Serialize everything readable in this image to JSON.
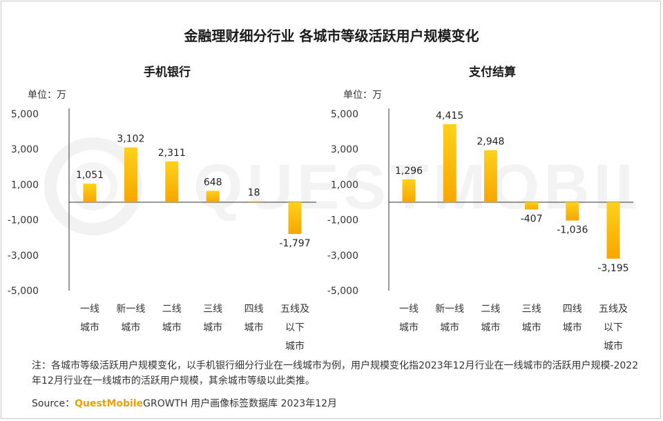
{
  "title": "金融理财细分行业 各城市等级活跃用户规模变化",
  "colors": {
    "bar_top": "#ffd11a",
    "bar_bottom": "#f7a600",
    "axis": "#333333",
    "brand": "#e8a300"
  },
  "watermark": "QUESTMOBILE",
  "footnote": "注：各城市等级活跃用户规模变化，以手机银行细分行业在一线城市为例，用户规模变化指2023年12月行业在一线城市的活跃用户规模-2022年12月行业在一线城市的活跃用户规模，其余城市等级以此类推。",
  "source": {
    "prefix": "Source：",
    "brand": "QuestMobile",
    "rest": "GROWTH 用户画像标签数据库 2023年12月"
  },
  "chart_data": [
    {
      "type": "bar",
      "title": "手机银行",
      "unit_label": "单位：万",
      "categories": [
        "一线城市",
        "新一线城市",
        "二线城市",
        "三线城市",
        "四线城市",
        "五线及以下城市"
      ],
      "category_lines": [
        [
          "一线",
          "城市"
        ],
        [
          "新一线",
          "城市"
        ],
        [
          "二线",
          "城市"
        ],
        [
          "三线",
          "城市"
        ],
        [
          "四线",
          "城市"
        ],
        [
          "五线及",
          "以下",
          "城市"
        ]
      ],
      "values": [
        1051,
        3102,
        2311,
        648,
        18,
        -1797
      ],
      "value_labels": [
        "1,051",
        "3,102",
        "2,311",
        "648",
        "18",
        "-1,797"
      ],
      "yticks": [
        5000,
        3000,
        1000,
        -1000,
        -3000,
        -5000
      ],
      "ytick_labels": [
        "5,000",
        "3,000",
        "1,000",
        "-1,000",
        "-3,000",
        "-5,000"
      ],
      "ylim": [
        -5000,
        5000
      ]
    },
    {
      "type": "bar",
      "title": "支付结算",
      "unit_label": "单位：万",
      "categories": [
        "一线城市",
        "新一线城市",
        "二线城市",
        "三线城市",
        "四线城市",
        "五线及以下城市"
      ],
      "category_lines": [
        [
          "一线",
          "城市"
        ],
        [
          "新一线",
          "城市"
        ],
        [
          "二线",
          "城市"
        ],
        [
          "三线",
          "城市"
        ],
        [
          "四线",
          "城市"
        ],
        [
          "五线及",
          "以下",
          "城市"
        ]
      ],
      "values": [
        1296,
        4415,
        2948,
        -407,
        -1036,
        -3195
      ],
      "value_labels": [
        "1,296",
        "4,415",
        "2,948",
        "-407",
        "-1,036",
        "-3,195"
      ],
      "yticks": [
        5000,
        3000,
        1000,
        -1000,
        -3000,
        -5000
      ],
      "ytick_labels": [
        "5,000",
        "3,000",
        "1,000",
        "-1,000",
        "-3,000",
        "-5,000"
      ],
      "ylim": [
        -5000,
        5000
      ]
    }
  ]
}
